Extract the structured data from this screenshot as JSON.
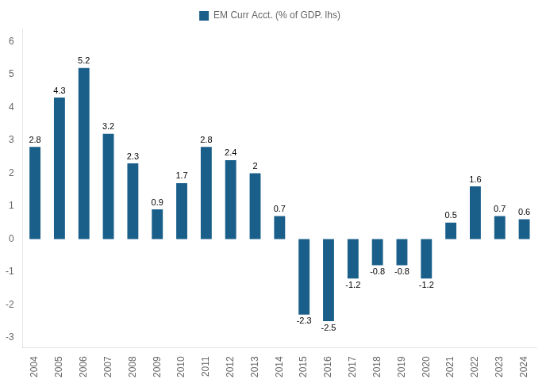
{
  "chart_data": {
    "type": "bar",
    "categories": [
      "2004",
      "2005",
      "2006",
      "2007",
      "2008",
      "2009",
      "2010",
      "2011",
      "2012",
      "2013",
      "2014",
      "2015",
      "2016",
      "2017",
      "2018",
      "2019",
      "2020",
      "2021",
      "2022",
      "2023",
      "2024"
    ],
    "series": [
      {
        "name": "EM Curr Acct. (% of GDP. lhs)",
        "color": "#1a5f8a",
        "values": [
          2.8,
          4.3,
          5.2,
          3.2,
          2.3,
          0.9,
          1.7,
          2.8,
          2.4,
          2.0,
          0.7,
          -2.3,
          -2.5,
          -1.2,
          -0.8,
          -0.8,
          -1.2,
          0.5,
          1.6,
          0.7,
          0.6
        ]
      }
    ],
    "ylim": [
      -3.3,
      6.4
    ],
    "yticks": [
      -3,
      -2,
      -1,
      0,
      1,
      2,
      3,
      4,
      5,
      6
    ],
    "grid": false,
    "legend": "top",
    "data_labels": true
  }
}
